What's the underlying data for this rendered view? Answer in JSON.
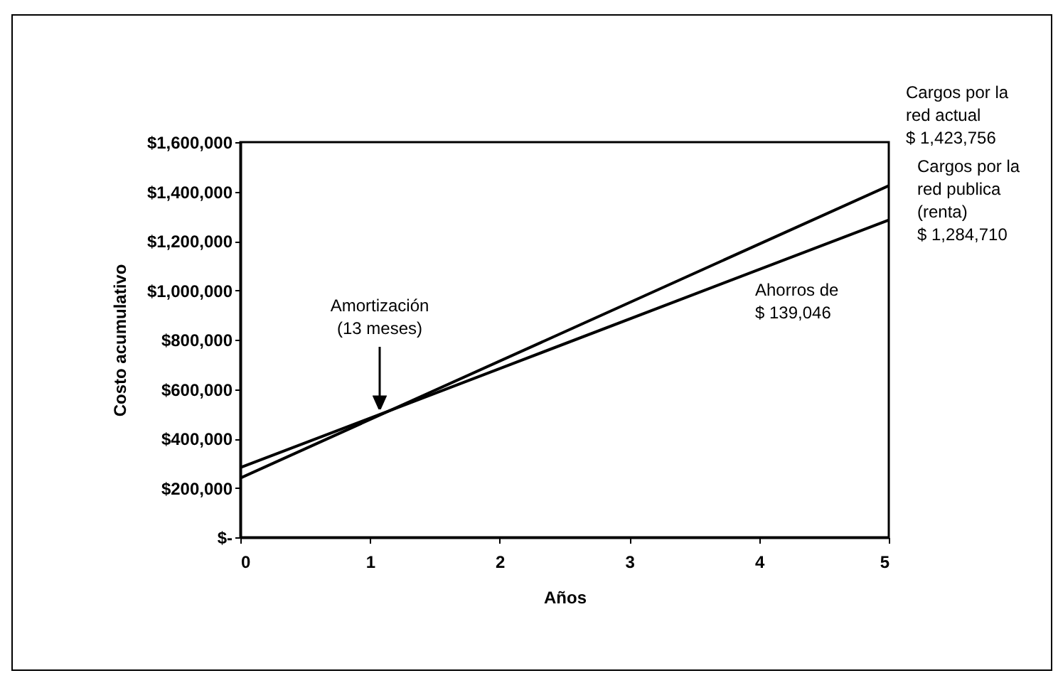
{
  "chart_data": {
    "type": "line",
    "xlabel": "Años",
    "ylabel": "Costo acumulativo",
    "x": [
      0,
      5
    ],
    "series": [
      {
        "color": "#000000",
        "values": [
          240000,
          1423756
        ]
      },
      {
        "color": "#000000",
        "values": [
          282000,
          1284710
        ]
      }
    ],
    "xlim": [
      0,
      5
    ],
    "xticks": [
      0,
      1,
      2,
      3,
      4,
      5
    ],
    "ylim": [
      0,
      1600000
    ],
    "yticks": [
      {
        "value": 0,
        "label": "$-"
      },
      {
        "value": 200000,
        "label": "$200,000"
      },
      {
        "value": 400000,
        "label": "$400,000"
      },
      {
        "value": 600000,
        "label": "$600,000"
      },
      {
        "value": 800000,
        "label": "$800,000"
      },
      {
        "value": 1000000,
        "label": "$1,000,000"
      },
      {
        "value": 1200000,
        "label": "$1,200,000"
      },
      {
        "value": 1400000,
        "label": "$1,400,000"
      },
      {
        "value": 1600000,
        "label": "$1,600,000"
      }
    ],
    "grid": false,
    "legend": false,
    "marker": "none",
    "line_style": "solid",
    "annotations": [
      "Cargos por la\nred actual\n$ 1,423,756",
      "Cargos por la\nred publica\n(renta)\n$ 1,284,710",
      "Amortización\n(13 meses)",
      "Ahorros de\n$ 139,046"
    ]
  }
}
